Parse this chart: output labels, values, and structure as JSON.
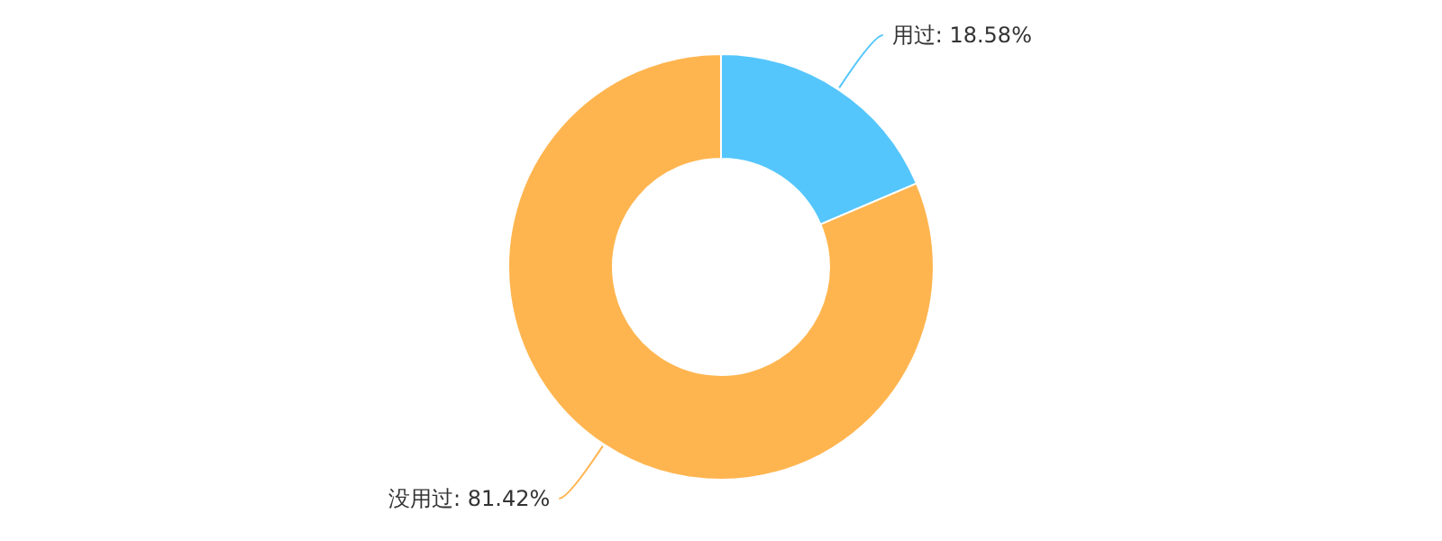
{
  "chart_data": {
    "type": "donut",
    "categories": [
      "用过",
      "没用过"
    ],
    "values": [
      18.58,
      81.42
    ],
    "colors": [
      "#55c6fc",
      "#ffb54f"
    ],
    "value_labels": [
      ": 18.58%",
      ": 81.42%"
    ]
  }
}
